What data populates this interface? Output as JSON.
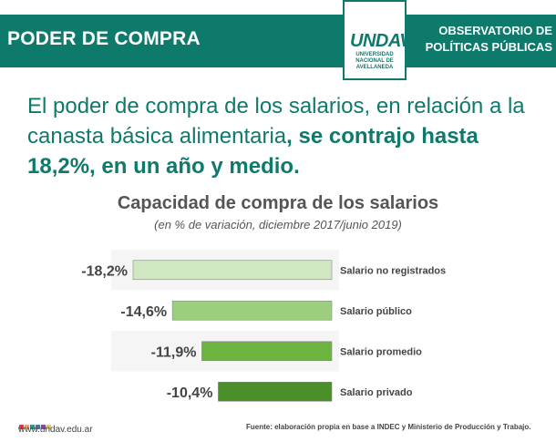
{
  "header": {
    "title": "PODER DE COMPRA",
    "logo_mark": "UNDAV",
    "logo_text": "UNIVERSIDAD NACIONAL DE AVELLANEDA",
    "observatory_line1": "OBSERVATORIO DE",
    "observatory_line2": "POLÍTICAS PÚBLICAS"
  },
  "headline": {
    "normal": "El poder de compra de los salarios, en relación a la canasta básica alimentaria",
    "bold": ", se contrajo hasta 18,2%, en un año y medio."
  },
  "footer": {
    "url": "www.undav.edu.ar",
    "source": "Fuente: elaboración propia en base a INDEC y Ministerio de Producción y Trabajo."
  },
  "colors": {
    "brand": "#0e7a6c",
    "dots": [
      "#e63946",
      "#f4a261",
      "#2a9d8f",
      "#457b9d",
      "#8e44ad",
      "#e9c46a"
    ]
  },
  "chart_data": {
    "type": "bar",
    "orientation": "horizontal",
    "title": "Capacidad de compra de los salarios",
    "subtitle": "(en % de variación, diciembre 2017/junio 2019)",
    "categories": [
      "Salario no registrados",
      "Salario público",
      "Salario promedio",
      "Salario privado"
    ],
    "values": [
      -18.2,
      -14.6,
      -11.9,
      -10.4
    ],
    "value_labels": [
      "-18,2%",
      "-14,6%",
      "-11,9%",
      "-10,4%"
    ],
    "bar_colors": [
      "#cfe8c2",
      "#9ccf7d",
      "#6cb33f",
      "#4a8f2a"
    ],
    "xlim": [
      -18.2,
      0
    ],
    "grid": false,
    "legend": "none"
  }
}
